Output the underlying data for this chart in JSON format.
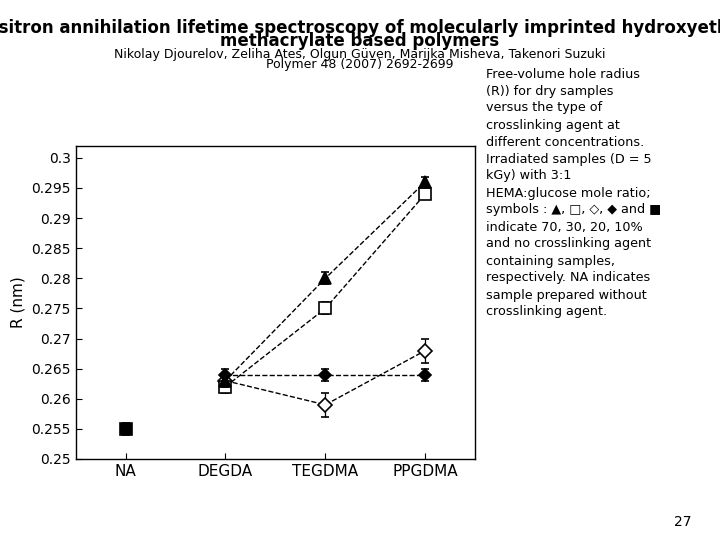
{
  "title_line1": "Positron annihilation lifetime spectroscopy of molecularly imprinted hydroxyethyl",
  "title_line2": "methacrylate based polymers",
  "subtitle_line1": "Nikolay Djourelov, Zeliha Ates, Olgun Güven, Marijka Misheva, Takenori Suzuki",
  "subtitle_line2": "Polymer 48 (2007) 2692-2699",
  "xlabel_categories": [
    "NA",
    "DEGDA",
    "TEGDMA",
    "PPGDMA"
  ],
  "x_positions": [
    0,
    1,
    2,
    3
  ],
  "ylabel": "R (nm)",
  "ylim": [
    0.25,
    0.302
  ],
  "ytick_values": [
    0.25,
    0.255,
    0.26,
    0.265,
    0.27,
    0.275,
    0.28,
    0.285,
    0.29,
    0.295,
    0.3
  ],
  "ytick_labels": [
    "0.25",
    "0.255",
    "0.26",
    "0.265",
    "0.27",
    "0.275",
    "0.28",
    "0.285",
    "0.29",
    "0.295",
    "0.3"
  ],
  "series": {
    "triangle_filled": {
      "x": [
        1,
        2,
        3
      ],
      "y": [
        0.263,
        0.28,
        0.296
      ],
      "yerr": [
        0.001,
        0.001,
        0.0008
      ],
      "marker": "^",
      "fillstyle": "full",
      "linestyle": "--",
      "markersize": 8,
      "zorder": 5
    },
    "square_open": {
      "x": [
        1,
        2,
        3
      ],
      "y": [
        0.262,
        0.275,
        0.294
      ],
      "yerr": [
        0.001,
        0.001,
        0.0008
      ],
      "marker": "s",
      "fillstyle": "none",
      "linestyle": "--",
      "markersize": 8,
      "zorder": 4
    },
    "diamond_open": {
      "x": [
        1,
        2,
        3
      ],
      "y": [
        0.263,
        0.259,
        0.268
      ],
      "yerr": [
        0.001,
        0.002,
        0.002
      ],
      "marker": "D",
      "fillstyle": "none",
      "linestyle": "--",
      "markersize": 7,
      "zorder": 3
    },
    "diamond_filled": {
      "x": [
        1,
        2,
        3
      ],
      "y": [
        0.264,
        0.264,
        0.264
      ],
      "yerr": [
        0.001,
        0.001,
        0.001
      ],
      "marker": "D",
      "fillstyle": "full",
      "linestyle": "--",
      "markersize": 6,
      "zorder": 6
    },
    "square_filled": {
      "x": [
        0
      ],
      "y": [
        0.255
      ],
      "yerr": [
        0.001
      ],
      "marker": "s",
      "fillstyle": "full",
      "linestyle": "none",
      "markersize": 9,
      "zorder": 5
    }
  },
  "annotation_text": "Free-volume hole radius\n(R)) for dry samples\nversus the type of\ncrosslinking agent at\ndifferent concentrations.\nIrradiated samples (D = 5\nkGy) with 3:1\nHEMA:glucose mole ratio;\nsymbols : ▲, □, ◇, ◆ and ■\nindicate 70, 30, 20, 10%\nand no crosslinking agent\ncontaining samples,\nrespectively. NA indicates\nsample prepared without\ncrosslinking agent.",
  "page_number": "27",
  "background_color": "#ffffff"
}
